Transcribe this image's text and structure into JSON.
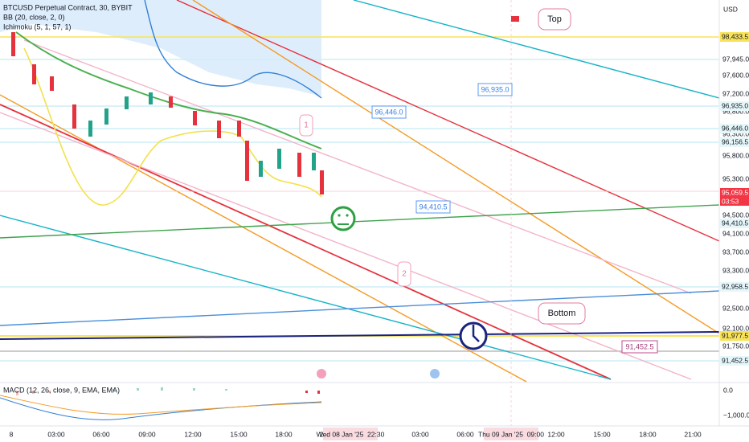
{
  "header": {
    "symbol": "BTCUSD Perpetual Contract, 30, BYBIT",
    "indicators": [
      "BB (20, close, 2, 0)",
      "Ichimoku (5, 1, 57, 1)"
    ],
    "currency": "USD"
  },
  "price_axis": {
    "labels": [
      "97,945.0",
      "97,600.0",
      "97,200.0",
      "96,800.0",
      "96,300.0",
      "95,800.0",
      "95,300.0",
      "94,500.0",
      "94,100.0",
      "93,700.0",
      "93,300.0",
      "92,500.0",
      "92,100.0",
      "91,750.0"
    ],
    "markers": [
      "98,433.5",
      "96,935.0",
      "96,446.0",
      "96,156.5",
      "95,059.5",
      "94,410.5",
      "92,958.5",
      "91,977.5",
      "91,452.5"
    ],
    "countdown": "03:53"
  },
  "time_axis": {
    "labels": [
      "8",
      "03:00",
      "06:00",
      "09:00",
      "12:00",
      "15:00",
      "18:00",
      "2",
      "03:00",
      "06:00",
      "12:00",
      "15:00",
      "18:00",
      "21:00"
    ],
    "cursor_labels": [
      "Wed 08 Jan '25  22:30",
      "Thu 09 Jan '25  09:00"
    ]
  },
  "callouts": [
    "Top",
    "Bottom",
    "96,935.0",
    "96,446.0",
    "94,410.5",
    "91,452.5",
    "1",
    "2"
  ],
  "macd": {
    "title": "MACD (12, 26, close, 9, EMA, EMA)",
    "labels": [
      "0.0",
      "−1,000.0"
    ]
  }
}
